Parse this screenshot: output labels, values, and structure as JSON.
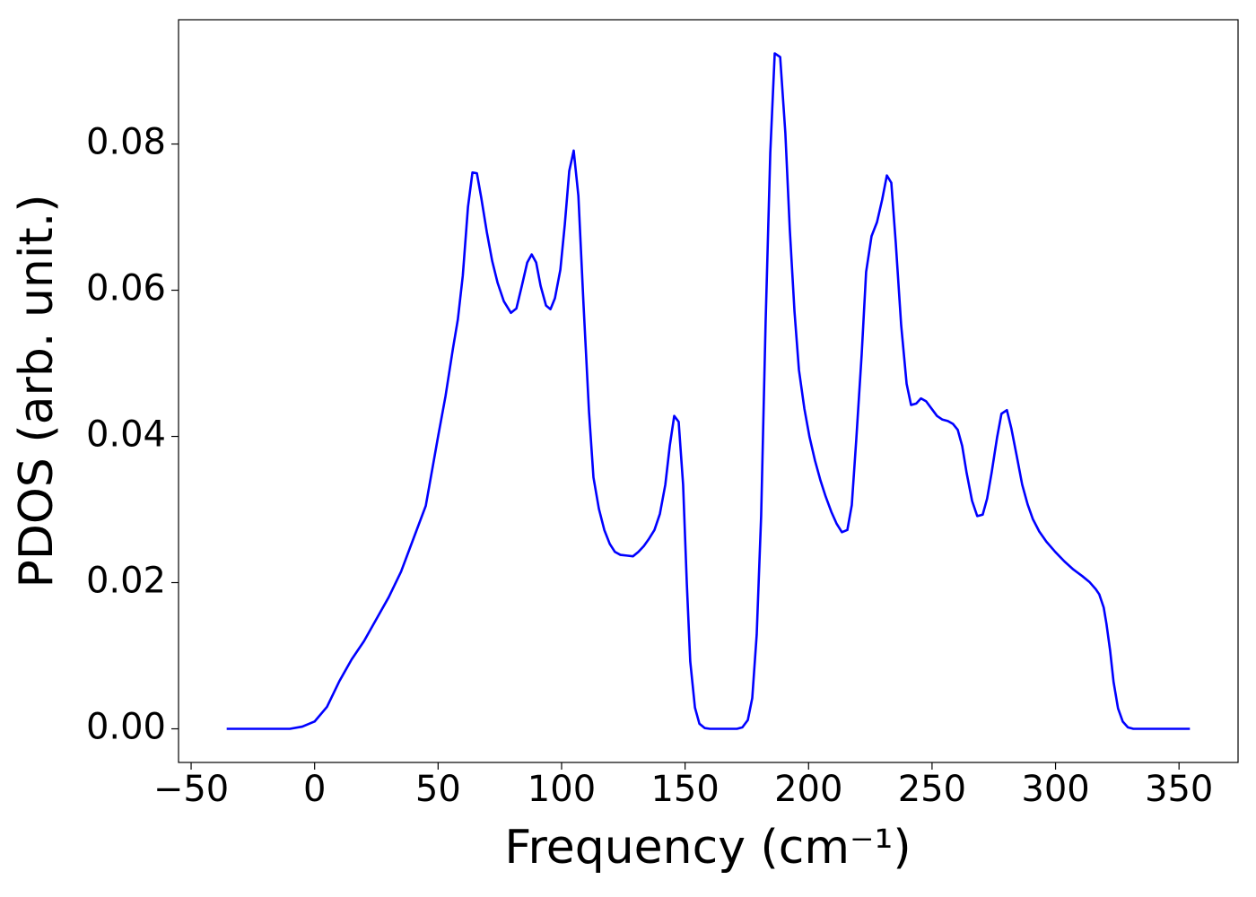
{
  "chart_data": {
    "type": "line",
    "xlabel": "Frequency (cm⁻¹)",
    "ylabel": "PDOS (arb. unit.)",
    "xlim": [
      -55.1,
      373.9
    ],
    "ylim": [
      -0.0046,
      0.097
    ],
    "xticks": [
      {
        "value": -50,
        "label": "−50"
      },
      0,
      50,
      100,
      150,
      200,
      250,
      300,
      350
    ],
    "yticks": [
      {
        "value": 0,
        "label": "0.00"
      },
      {
        "value": 0.02,
        "label": "0.02"
      },
      {
        "value": 0.04,
        "label": "0.04"
      },
      {
        "value": 0.06,
        "label": "0.06"
      },
      {
        "value": 0.08,
        "label": "0.08"
      }
    ],
    "grid": false,
    "x": [
      -35.6,
      -30,
      -20,
      -10,
      -5,
      0,
      5,
      10,
      15,
      20,
      25,
      30,
      35,
      40,
      45,
      50,
      53,
      56,
      58,
      60,
      62.1,
      63.9,
      65.7,
      67.5,
      69.7,
      71.9,
      74.1,
      76.6,
      79.5,
      81.7,
      83.9,
      86.1,
      87.9,
      89.7,
      91.5,
      93.7,
      95.5,
      97.3,
      99.5,
      101.3,
      103.1,
      104.9,
      106.8,
      108.9,
      111.1,
      112.9,
      115.1,
      117.3,
      119.5,
      121.6,
      123.8,
      126.4,
      128.9,
      131.1,
      133.3,
      135.4,
      137.6,
      139.8,
      142.0,
      143.8,
      145.6,
      147.4,
      149.2,
      150.7,
      152.1,
      154.0,
      155.8,
      158.0,
      160.1,
      171.0,
      173.2,
      175.4,
      177.2,
      179.0,
      180.8,
      182.6,
      184.5,
      186.3,
      188.5,
      190.6,
      192.4,
      194.3,
      196.1,
      198.3,
      200.4,
      202.6,
      204.8,
      206.9,
      209.2,
      211.3,
      213.5,
      215.7,
      217.5,
      219.3,
      221.5,
      223.3,
      225.5,
      227.7,
      229.8,
      231.7,
      233.5,
      235.3,
      237.5,
      239.7,
      241.5,
      243.6,
      245.5,
      247.6,
      249.8,
      252.0,
      254.2,
      256.4,
      258.5,
      260.4,
      262.2,
      264.0,
      266.2,
      268.3,
      270.5,
      272.3,
      274.1,
      276.3,
      278.1,
      280.3,
      282.1,
      284.3,
      286.5,
      288.7,
      290.8,
      293.4,
      296.3,
      299.9,
      303.6,
      307.2,
      310.8,
      313.7,
      316.3,
      317.7,
      319.5,
      320.6,
      322.1,
      323.5,
      325.3,
      327.2,
      329.3,
      331.5,
      354.4
    ],
    "series": [
      {
        "color": "#0000ff",
        "values": [
          0,
          0,
          0,
          0,
          0.0003,
          0.001,
          0.003,
          0.0065,
          0.0095,
          0.012,
          0.015,
          0.018,
          0.0215,
          0.026,
          0.0305,
          0.04,
          0.0455,
          0.052,
          0.056,
          0.062,
          0.0714,
          0.0761,
          0.076,
          0.0726,
          0.068,
          0.064,
          0.061,
          0.0585,
          0.0569,
          0.0575,
          0.0606,
          0.0638,
          0.0649,
          0.0638,
          0.0606,
          0.0579,
          0.0574,
          0.0589,
          0.0628,
          0.069,
          0.0763,
          0.0791,
          0.0729,
          0.0579,
          0.0434,
          0.0344,
          0.0301,
          0.0272,
          0.0253,
          0.0242,
          0.0238,
          0.0237,
          0.0236,
          0.0242,
          0.025,
          0.026,
          0.0272,
          0.0294,
          0.0334,
          0.0387,
          0.0428,
          0.042,
          0.0334,
          0.0199,
          0.0092,
          0.0029,
          0.0007,
          0.0001,
          0,
          0,
          0.0002,
          0.0012,
          0.0042,
          0.0129,
          0.0291,
          0.0555,
          0.0788,
          0.0924,
          0.0919,
          0.0815,
          0.0683,
          0.0571,
          0.0491,
          0.0438,
          0.0399,
          0.0367,
          0.034,
          0.0318,
          0.0297,
          0.0281,
          0.0269,
          0.0272,
          0.0306,
          0.0395,
          0.0512,
          0.0625,
          0.0674,
          0.0693,
          0.0724,
          0.0757,
          0.0747,
          0.0665,
          0.0552,
          0.0472,
          0.0443,
          0.0445,
          0.0452,
          0.0448,
          0.0438,
          0.0428,
          0.0423,
          0.0421,
          0.0417,
          0.0409,
          0.0387,
          0.035,
          0.0312,
          0.0291,
          0.0293,
          0.0315,
          0.035,
          0.0398,
          0.0431,
          0.0436,
          0.0411,
          0.0373,
          0.0334,
          0.0307,
          0.0287,
          0.027,
          0.0256,
          0.0242,
          0.0229,
          0.0218,
          0.0209,
          0.0201,
          0.0191,
          0.0184,
          0.0166,
          0.0144,
          0.0107,
          0.0064,
          0.0028,
          0.001,
          0.0002,
          0,
          0
        ]
      }
    ]
  }
}
